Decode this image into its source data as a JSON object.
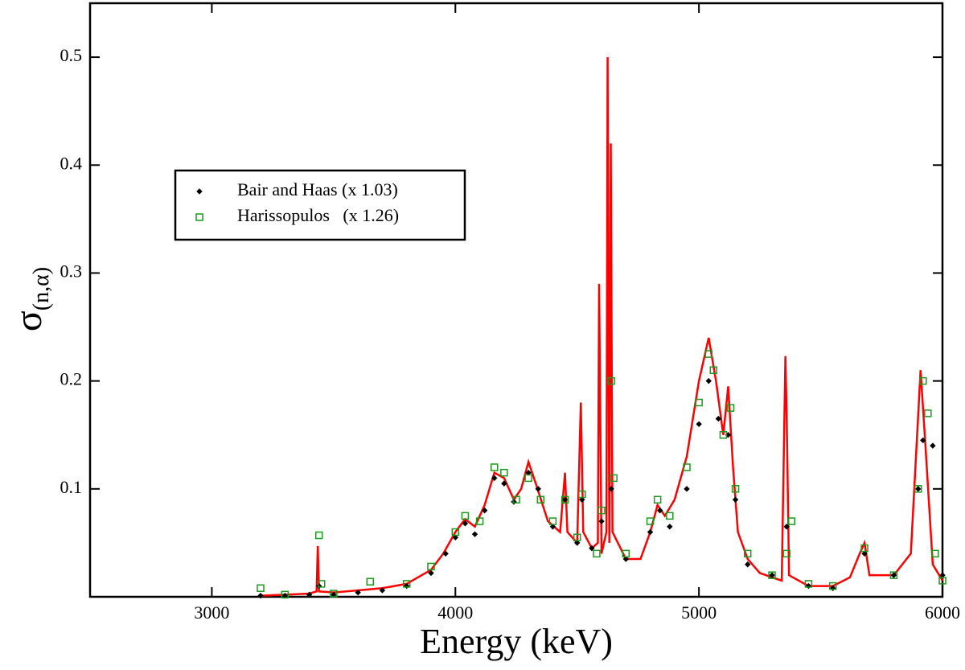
{
  "chart_data": {
    "type": "scatter",
    "x_label": "Energy (keV)",
    "y_label": {
      "symbol": "σ",
      "subscript": "(n,α)"
    },
    "xlim": [
      2500,
      6000
    ],
    "xticks": [
      3000,
      4000,
      5000,
      6000
    ],
    "ylim": [
      0,
      0.55
    ],
    "yticks": [
      0.1,
      0.2,
      0.3,
      0.4,
      0.5
    ],
    "legend": "upper left",
    "series": [
      {
        "color": "#ff0000",
        "marker": "line",
        "x": [
          3200,
          3300,
          3400,
          3430,
          3435,
          3440,
          3500,
          3600,
          3700,
          3800,
          3900,
          3950,
          4000,
          4040,
          4080,
          4120,
          4160,
          4200,
          4240,
          4270,
          4300,
          4330,
          4380,
          4430,
          4450,
          4460,
          4500,
          4515,
          4525,
          4560,
          4585,
          4590,
          4600,
          4620,
          4625,
          4632,
          4638,
          4645,
          4700,
          4760,
          4800,
          4830,
          4860,
          4900,
          4950,
          5000,
          5040,
          5070,
          5100,
          5120,
          5140,
          5160,
          5200,
          5250,
          5300,
          5340,
          5355,
          5360,
          5370,
          5450,
          5550,
          5620,
          5660,
          5680,
          5700,
          5800,
          5870,
          5910,
          5930,
          5960,
          6000
        ],
        "values": [
          0.001,
          0.002,
          0.003,
          0.005,
          0.047,
          0.005,
          0.004,
          0.006,
          0.008,
          0.012,
          0.025,
          0.04,
          0.06,
          0.072,
          0.065,
          0.085,
          0.115,
          0.11,
          0.09,
          0.1,
          0.125,
          0.105,
          0.07,
          0.06,
          0.115,
          0.06,
          0.05,
          0.18,
          0.06,
          0.045,
          0.05,
          0.29,
          0.04,
          0.06,
          0.5,
          0.05,
          0.42,
          0.06,
          0.035,
          0.035,
          0.06,
          0.085,
          0.075,
          0.09,
          0.13,
          0.2,
          0.24,
          0.2,
          0.15,
          0.195,
          0.12,
          0.06,
          0.035,
          0.022,
          0.018,
          0.015,
          0.223,
          0.17,
          0.02,
          0.01,
          0.01,
          0.018,
          0.04,
          0.05,
          0.02,
          0.02,
          0.04,
          0.21,
          0.14,
          0.03,
          0.015
        ]
      },
      {
        "name": "Bair and Haas (x 1.03)",
        "color": "#000000",
        "marker": "diamond",
        "x": [
          3200,
          3300,
          3400,
          3440,
          3500,
          3600,
          3700,
          3800,
          3900,
          3960,
          4000,
          4040,
          4080,
          4120,
          4160,
          4200,
          4240,
          4300,
          4340,
          4400,
          4450,
          4500,
          4520,
          4560,
          4600,
          4640,
          4700,
          4800,
          4840,
          4880,
          4950,
          5000,
          5040,
          5080,
          5120,
          5150,
          5200,
          5300,
          5360,
          5450,
          5550,
          5680,
          5800,
          5900,
          5920,
          5960,
          6000
        ],
        "values": [
          0.001,
          0.001,
          0.002,
          0.01,
          0.002,
          0.004,
          0.006,
          0.01,
          0.022,
          0.04,
          0.055,
          0.068,
          0.058,
          0.08,
          0.11,
          0.105,
          0.088,
          0.115,
          0.1,
          0.065,
          0.09,
          0.05,
          0.09,
          0.045,
          0.07,
          0.1,
          0.035,
          0.06,
          0.08,
          0.065,
          0.1,
          0.16,
          0.2,
          0.165,
          0.15,
          0.09,
          0.03,
          0.02,
          0.065,
          0.01,
          0.008,
          0.04,
          0.02,
          0.1,
          0.145,
          0.14,
          0.02
        ]
      },
      {
        "name": "Harissopulos   (x 1.26)",
        "color": "#1a9a1a",
        "marker": "square",
        "x": [
          3200,
          3300,
          3440,
          3450,
          3500,
          3650,
          3800,
          3900,
          4000,
          4040,
          4100,
          4160,
          4200,
          4250,
          4300,
          4350,
          4400,
          4450,
          4500,
          4520,
          4580,
          4600,
          4640,
          4650,
          4700,
          4800,
          4830,
          4880,
          4950,
          5000,
          5040,
          5060,
          5100,
          5130,
          5150,
          5200,
          5300,
          5360,
          5380,
          5450,
          5550,
          5680,
          5800,
          5900,
          5920,
          5940,
          5970,
          6000
        ],
        "values": [
          0.008,
          0.002,
          0.057,
          0.012,
          0.003,
          0.014,
          0.012,
          0.028,
          0.06,
          0.075,
          0.07,
          0.12,
          0.115,
          0.09,
          0.11,
          0.09,
          0.07,
          0.09,
          0.055,
          0.095,
          0.04,
          0.08,
          0.2,
          0.11,
          0.04,
          0.07,
          0.09,
          0.075,
          0.12,
          0.18,
          0.225,
          0.21,
          0.15,
          0.175,
          0.1,
          0.04,
          0.02,
          0.04,
          0.07,
          0.012,
          0.01,
          0.045,
          0.02,
          0.1,
          0.2,
          0.17,
          0.04,
          0.015
        ]
      }
    ]
  }
}
